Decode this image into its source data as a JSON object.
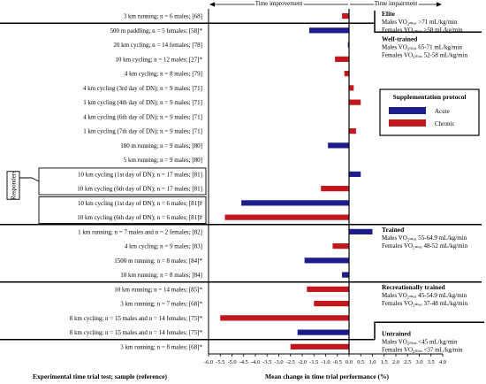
{
  "chart_data": {
    "type": "bar",
    "orientation": "horizontal",
    "xlabel": "Mean change in time trial performance (%)",
    "ylabel": "Experimental time trial test; sample (reference)",
    "xlim": [
      -6.0,
      4.0
    ],
    "xticks": [
      "-6.0",
      "-5.5",
      "-5.0",
      "-4.5",
      "-4.0",
      "-3.5",
      "-3.0",
      "-2.5",
      "-2.0",
      "-1.5",
      "-1.0",
      "-0.5",
      "0.0",
      "0.5",
      "1.0",
      "1.5",
      "2.0",
      "2.5",
      "3.0",
      "3.5",
      "4.0"
    ],
    "direction_labels": {
      "left": "Time improvement",
      "right": "Time impairment"
    },
    "responders_label": "Responders",
    "rows": [
      {
        "label": "3 km running; n = 6 males; [68]",
        "value": -0.3,
        "protocol": "Chronic"
      },
      {
        "label": "500 m paddling; n = 5 females; [58]*",
        "value": -1.7,
        "protocol": "Acute"
      },
      {
        "label": "20 km cycling; n = 14 females; [78]",
        "value": -0.05,
        "protocol": "Acute"
      },
      {
        "label": "10 km cycling; n = 12 males; [27]*",
        "value": -0.6,
        "protocol": "Chronic"
      },
      {
        "label": "4 km cycling; n = 8 males; [79]",
        "value": -0.2,
        "protocol": "Chronic"
      },
      {
        "label": "4 km cycling (3rd day of DN); n = 9 males; [71]",
        "value": 0.2,
        "protocol": "Chronic"
      },
      {
        "label": "1 km cycling (4th day of DN); n = 9 males; [71]",
        "value": 0.5,
        "protocol": "Chronic"
      },
      {
        "label": "4 km cycling (6th day of DN); n = 9 males; [71]",
        "value": 0.0,
        "protocol": "Chronic"
      },
      {
        "label": "1 km cycling (7th day of DN); n = 9 males; [71]",
        "value": 0.3,
        "protocol": "Chronic"
      },
      {
        "label": "180 m running; n = 9 males; [80]",
        "value": -0.9,
        "protocol": "Acute"
      },
      {
        "label": "5 km running; n = 9 males; [80]",
        "value": 0.0,
        "protocol": "Acute"
      },
      {
        "label": "10 km cycling (1st day of DN); n = 17 males; [81]",
        "value": 0.5,
        "protocol": "Acute"
      },
      {
        "label": "10 km cycling (6th day of DN); n = 17 males; [81]",
        "value": -1.2,
        "protocol": "Chronic"
      },
      {
        "label": "10 km cycling (1st day of DN); n = 6 males; [81]#",
        "value": -4.6,
        "protocol": "Acute"
      },
      {
        "label": "10 km cycling (6th day of DN); n = 6 males; [81]#",
        "value": -5.3,
        "protocol": "Chronic"
      },
      {
        "label": "1 km running; n = 7 males and n = 2 females; [82]",
        "value": 1.0,
        "protocol": "Acute"
      },
      {
        "label": "4 km cycling; n = 9 males; [83]",
        "value": -0.7,
        "protocol": "Chronic"
      },
      {
        "label": "1500 m running; n = 8 males; [84]*",
        "value": -1.9,
        "protocol": "Acute"
      },
      {
        "label": "10 km running; n = 8 males; [84]",
        "value": -0.3,
        "protocol": "Acute"
      },
      {
        "label": "10 km running; n = 14 males; [85]*",
        "value": -1.8,
        "protocol": "Chronic"
      },
      {
        "label": "3 km running; n = 7 males; [68]*",
        "value": -1.5,
        "protocol": "Chronic"
      },
      {
        "label": "8 km cycling; n = 15 males and n = 14 females; [75]*",
        "value": -5.5,
        "protocol": "Chronic"
      },
      {
        "label": "8 km cycling; n = 15 males and n = 14 females; [75]*",
        "value": -2.2,
        "protocol": "Acute"
      },
      {
        "label": "3 km running; n = 8 males; [68]*",
        "value": -2.5,
        "protocol": "Chronic"
      }
    ],
    "groups": [
      {
        "title": "Elite",
        "lines": [
          "Males VO2max >71 mL/kg/min",
          "Females VO2max >58 mL/kg/min"
        ]
      },
      {
        "title": "Well-trained",
        "lines": [
          "Males VO2max 65-71 mL/kg/min",
          "Females VO2max 52-58 mL/kg/min"
        ]
      },
      {
        "title": "Trained",
        "lines": [
          "Males VO2max 55-64.9 mL/kg/min",
          "Females VO2max 48-52 mL/kg/min"
        ]
      },
      {
        "title": "Recreationally trained",
        "lines": [
          "Males VO2max 45-54.9 mL/kg/min",
          "Females VO2max 37-48 mL/kg/min"
        ]
      },
      {
        "title": "Untrained",
        "lines": [
          "Males VO2max <45 mL/kg/min",
          "Females VO2max <37 mL/kg/min"
        ]
      }
    ],
    "legend": {
      "title": "Supplementation protocol",
      "placement": "right",
      "items": [
        {
          "name": "Acute",
          "color": "#1c1c8c"
        },
        {
          "name": "Chronic",
          "color": "#c0181e"
        }
      ]
    }
  }
}
